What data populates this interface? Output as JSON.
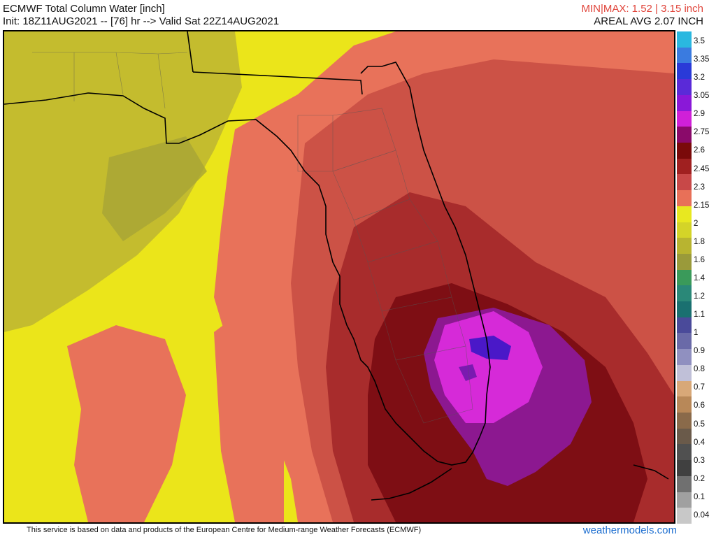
{
  "header": {
    "title": "ECMWF Total Column Water [inch]",
    "subtitle": "Init: 18Z11AUG2021 -- [76] hr --> Valid Sat 22Z14AUG2021",
    "minmax": "MIN|MAX: 1.52 | 3.15 inch",
    "areal_avg": "AREAL AVG 2.07 INCH"
  },
  "colorbar": {
    "labels": [
      "3.5",
      "3.35",
      "3.2",
      "3.05",
      "2.9",
      "2.75",
      "2.6",
      "2.45",
      "2.3",
      "2.15",
      "2",
      "1.8",
      "1.6",
      "1.4",
      "1.2",
      "1.1",
      "1",
      "0.9",
      "0.8",
      "0.7",
      "0.6",
      "0.5",
      "0.4",
      "0.3",
      "0.2",
      "0.1",
      "0.04"
    ],
    "colors": [
      "#2ab8e0",
      "#3a7be0",
      "#2a3ad8",
      "#5a2ad8",
      "#8a18d8",
      "#d020d8",
      "#8a0a6a",
      "#7a0a0a",
      "#a02020",
      "#c84848",
      "#e87058",
      "#e8e820",
      "#d4d428",
      "#b8b430",
      "#9a9a3a",
      "#3a9a5a",
      "#2a8878",
      "#1a7070",
      "#4a4a9a",
      "#6a6aa8",
      "#9090c0",
      "#c0c0d8",
      "#d8a878",
      "#b88858",
      "#8a6a4a",
      "#6a5a4a",
      "#505050",
      "#404040",
      "#707070",
      "#a0a0a0",
      "#c8c8c8"
    ]
  },
  "map": {
    "region": "Florida and southeastern United States",
    "palette": {
      "gulf_yellow": "#ebe51a",
      "olive": "#c4bc2e",
      "dark_olive": "#9a9a3c",
      "salmon": "#e8725a",
      "red": "#cc5246",
      "dark_red": "#a82c2c",
      "maroon": "#7e0e14",
      "purple": "#8c1890",
      "magenta": "#d62ad8",
      "violet": "#5a1ad0"
    }
  },
  "footer": {
    "credit": "This service is based on data and products of the European Centre for Medium-range Weather Forecasts (ECMWF)",
    "brand": "weathermodels.com"
  }
}
